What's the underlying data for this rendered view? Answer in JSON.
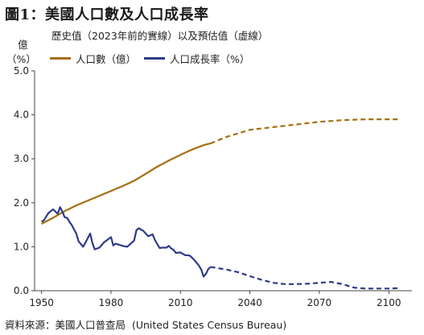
{
  "title": "圖1：美國人口數及人口成長率",
  "subtitle": "歷史值（2023年前的實線）以及預估值（虛線）",
  "y_unit_line1": "億",
  "y_unit_line2": "（%）",
  "source": "資料來源：美國人口普查局  (United States Census Bureau)",
  "colors": {
    "population": "#a56f0f",
    "growth": "#2e3a87",
    "axis": "#444444"
  },
  "chart_data": {
    "type": "line",
    "x_ticks": [
      1950,
      1980,
      2010,
      2040,
      2070,
      2100
    ],
    "y_ticks": [
      "0.0",
      "1.0",
      "2.0",
      "3.0",
      "4.0",
      "5.0"
    ],
    "xlim": [
      1947,
      2110
    ],
    "ylim": [
      0,
      5
    ],
    "series": [
      {
        "name": "人口數（億）",
        "color": "#a56f0f",
        "points": [
          [
            1950,
            1.52
          ],
          [
            1955,
            1.66
          ],
          [
            1960,
            1.81
          ],
          [
            1965,
            1.94
          ],
          [
            1970,
            2.05
          ],
          [
            1975,
            2.16
          ],
          [
            1980,
            2.27
          ],
          [
            1985,
            2.38
          ],
          [
            1990,
            2.5
          ],
          [
            1995,
            2.66
          ],
          [
            2000,
            2.82
          ],
          [
            2005,
            2.96
          ],
          [
            2010,
            3.09
          ],
          [
            2015,
            3.21
          ],
          [
            2020,
            3.31
          ],
          [
            2023,
            3.35
          ]
        ],
        "projected": [
          [
            2023,
            3.35
          ],
          [
            2030,
            3.5
          ],
          [
            2040,
            3.66
          ],
          [
            2050,
            3.72
          ],
          [
            2060,
            3.78
          ],
          [
            2070,
            3.84
          ],
          [
            2080,
            3.88
          ],
          [
            2090,
            3.9
          ],
          [
            2100,
            3.9
          ],
          [
            2105,
            3.9
          ]
        ]
      },
      {
        "name": "人口成長率（%）",
        "color": "#2e3a87",
        "points": [
          [
            1950,
            1.57
          ],
          [
            1951,
            1.6
          ],
          [
            1953,
            1.77
          ],
          [
            1955,
            1.85
          ],
          [
            1957,
            1.75
          ],
          [
            1958,
            1.9
          ],
          [
            1959,
            1.8
          ],
          [
            1960,
            1.67
          ],
          [
            1961,
            1.66
          ],
          [
            1962,
            1.57
          ],
          [
            1963,
            1.5
          ],
          [
            1965,
            1.3
          ],
          [
            1966,
            1.12
          ],
          [
            1968,
            1.0
          ],
          [
            1970,
            1.2
          ],
          [
            1971,
            1.3
          ],
          [
            1972,
            1.08
          ],
          [
            1973,
            0.94
          ],
          [
            1975,
            0.98
          ],
          [
            1977,
            1.1
          ],
          [
            1979,
            1.18
          ],
          [
            1980,
            1.22
          ],
          [
            1981,
            1.03
          ],
          [
            1982,
            1.07
          ],
          [
            1985,
            1.02
          ],
          [
            1987,
            1.0
          ],
          [
            1990,
            1.14
          ],
          [
            1991,
            1.38
          ],
          [
            1992,
            1.42
          ],
          [
            1994,
            1.36
          ],
          [
            1996,
            1.24
          ],
          [
            1998,
            1.28
          ],
          [
            1999,
            1.15
          ],
          [
            2001,
            0.97
          ],
          [
            2002,
            0.98
          ],
          [
            2004,
            0.98
          ],
          [
            2005,
            1.02
          ],
          [
            2006,
            0.96
          ],
          [
            2007,
            0.93
          ],
          [
            2008,
            0.86
          ],
          [
            2010,
            0.87
          ],
          [
            2012,
            0.81
          ],
          [
            2014,
            0.8
          ],
          [
            2016,
            0.7
          ],
          [
            2018,
            0.57
          ],
          [
            2019,
            0.48
          ],
          [
            2020,
            0.32
          ],
          [
            2021,
            0.38
          ],
          [
            2022,
            0.49
          ],
          [
            2023,
            0.54
          ]
        ],
        "projected": [
          [
            2023,
            0.54
          ],
          [
            2030,
            0.48
          ],
          [
            2035,
            0.42
          ],
          [
            2040,
            0.33
          ],
          [
            2045,
            0.25
          ],
          [
            2050,
            0.18
          ],
          [
            2055,
            0.15
          ],
          [
            2060,
            0.15
          ],
          [
            2065,
            0.16
          ],
          [
            2070,
            0.18
          ],
          [
            2075,
            0.2
          ],
          [
            2080,
            0.15
          ],
          [
            2085,
            0.07
          ],
          [
            2090,
            0.05
          ],
          [
            2100,
            0.05
          ],
          [
            2105,
            0.06
          ]
        ]
      }
    ]
  }
}
